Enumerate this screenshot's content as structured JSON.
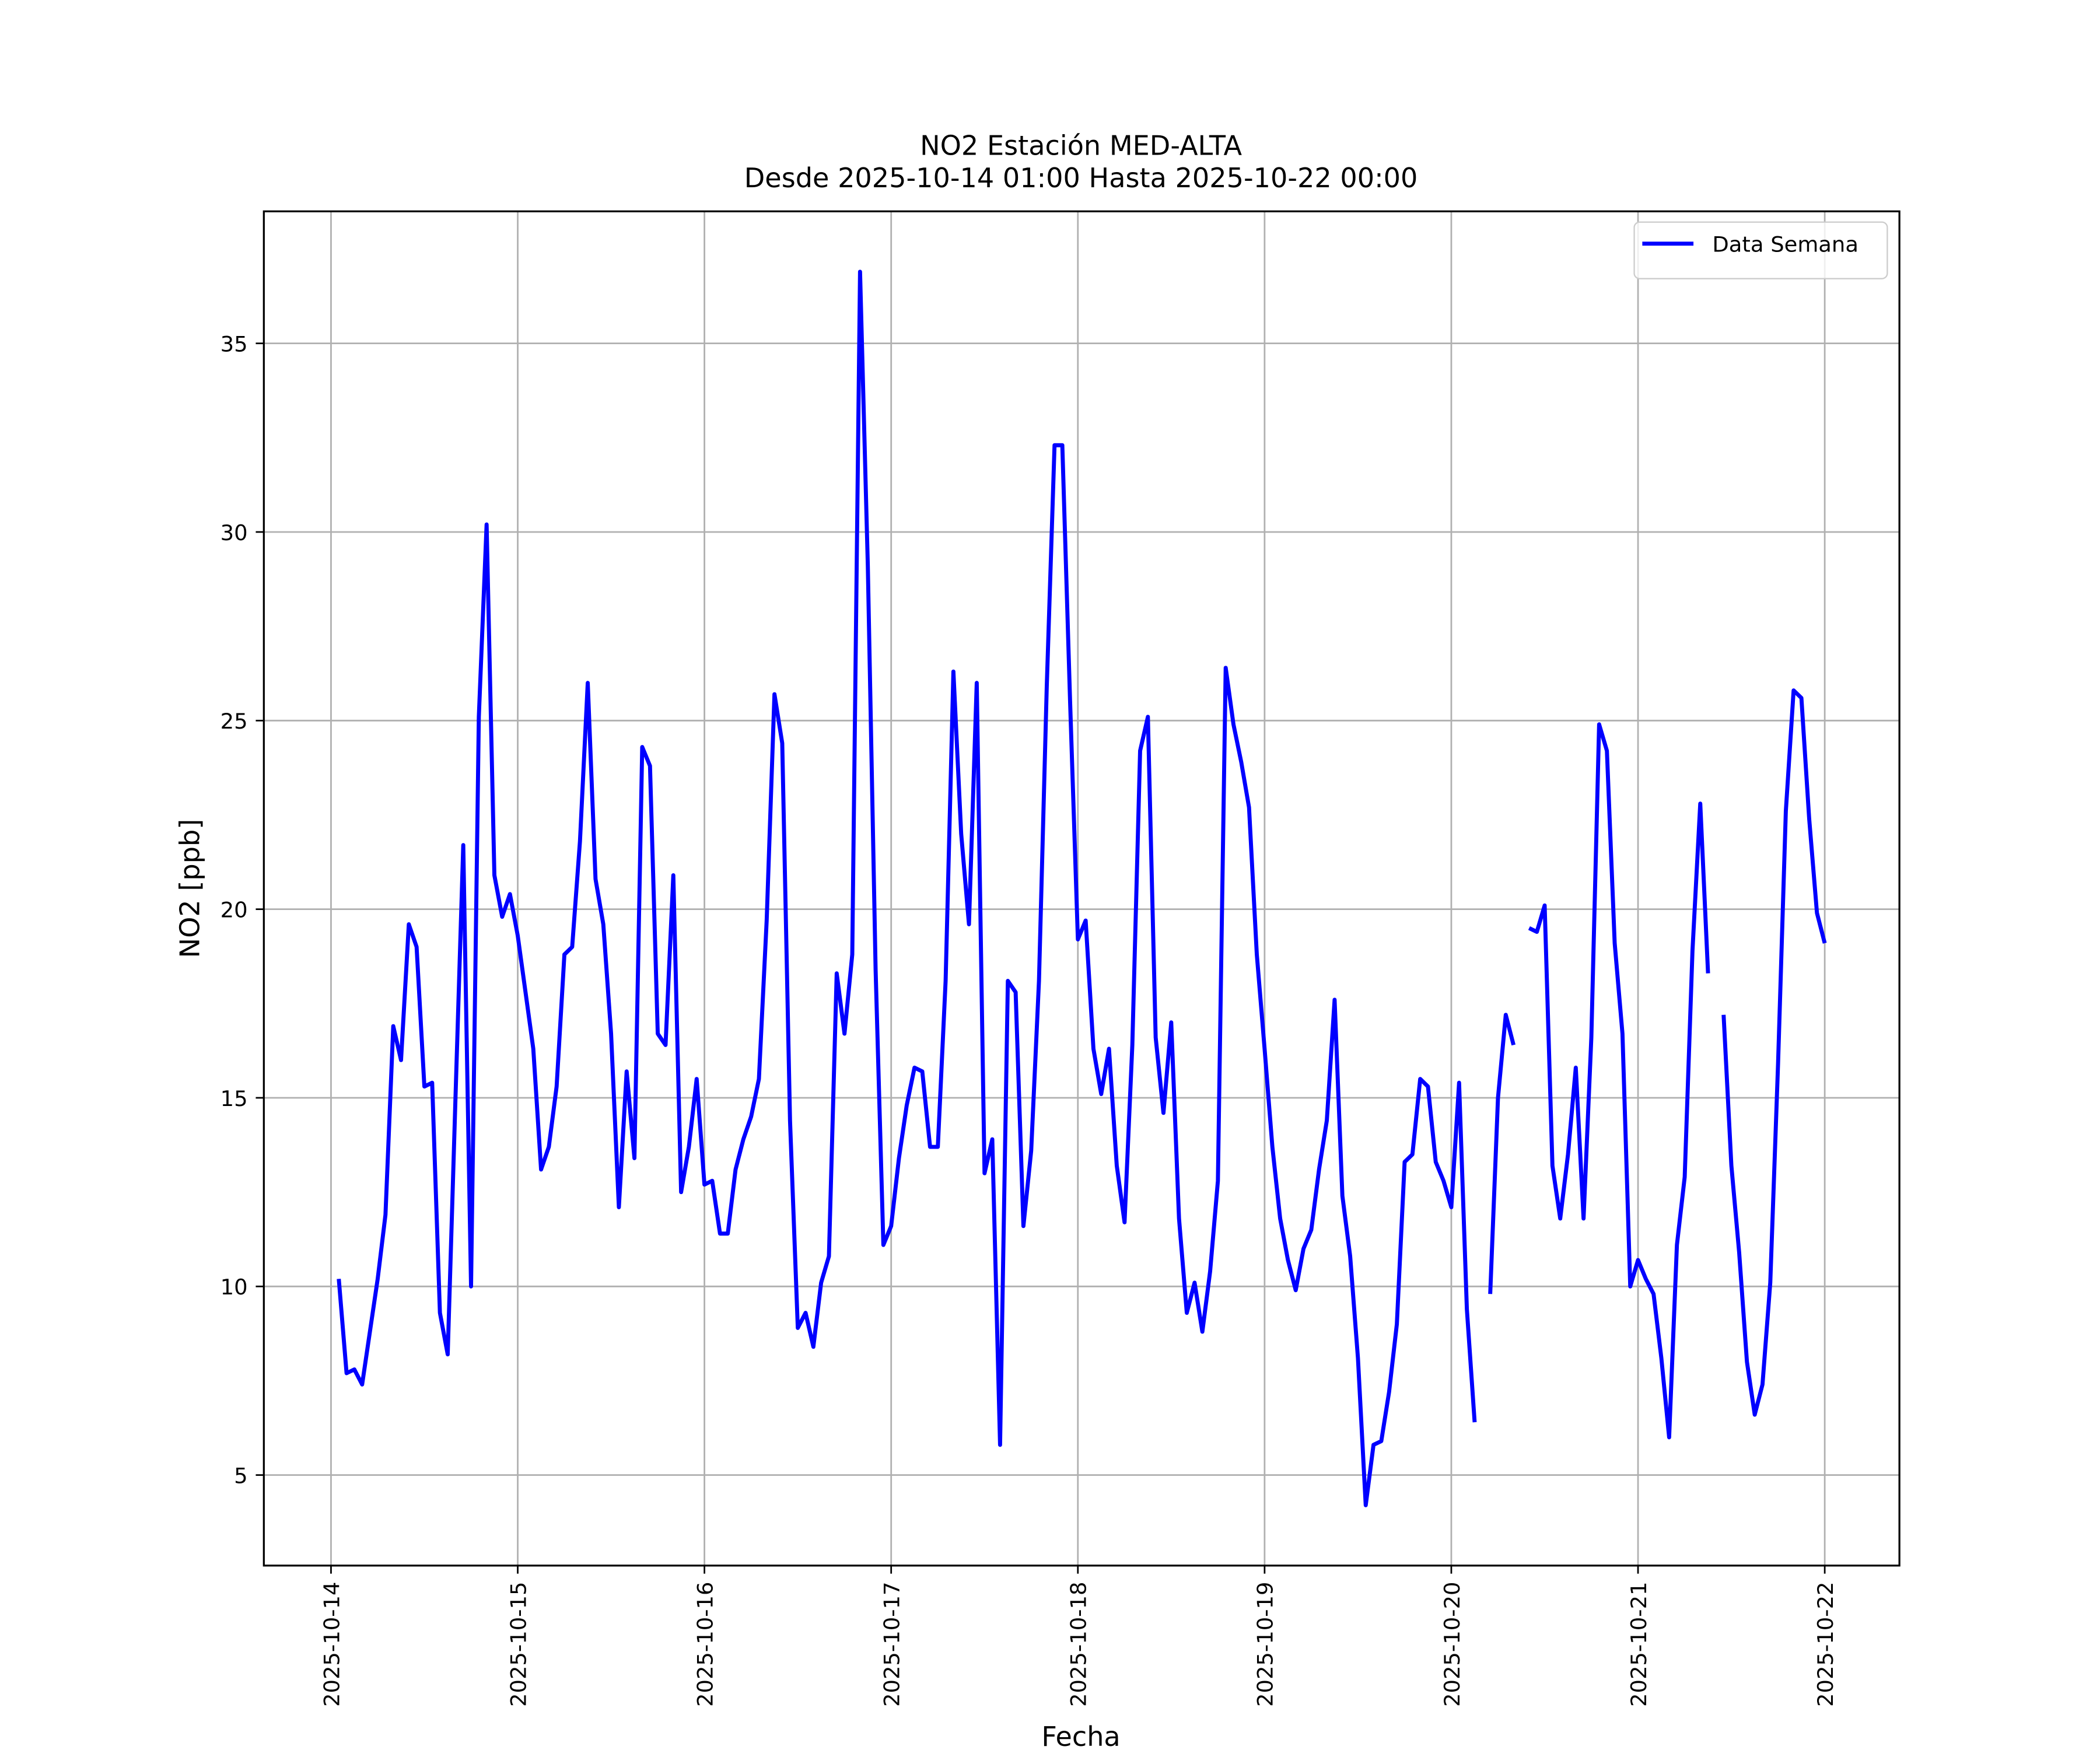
{
  "chart_data": {
    "type": "line",
    "title": "NO2 Estación MED-ALTA",
    "subtitle": "Desde 2025-10-14 01:00 Hasta 2025-10-22 00:00",
    "x_label": "Fecha",
    "y_label": "NO2 [ppb]",
    "xlim": [
      "2025-10-13 15:22",
      "2025-10-22 09:36"
    ],
    "ylim": [
      2.6,
      38.5
    ],
    "xticks": [
      "2025-10-14",
      "2025-10-15",
      "2025-10-16",
      "2025-10-17",
      "2025-10-18",
      "2025-10-19",
      "2025-10-20",
      "2025-10-21",
      "2025-10-22"
    ],
    "yticks": [
      5,
      10,
      15,
      20,
      25,
      30,
      35
    ],
    "grid": true,
    "legend": "upper right",
    "x": [
      "2025-10-14 01:00",
      "2025-10-14 02:00",
      "2025-10-14 03:00",
      "2025-10-14 04:00",
      "2025-10-14 05:00",
      "2025-10-14 06:00",
      "2025-10-14 07:00",
      "2025-10-14 08:00",
      "2025-10-14 09:00",
      "2025-10-14 10:00",
      "2025-10-14 11:00",
      "2025-10-14 12:00",
      "2025-10-14 13:00",
      "2025-10-14 14:00",
      "2025-10-14 15:00",
      "2025-10-14 16:00",
      "2025-10-14 17:00",
      "2025-10-14 18:00",
      "2025-10-14 19:00",
      "2025-10-14 20:00",
      "2025-10-14 21:00",
      "2025-10-14 22:00",
      "2025-10-14 23:00",
      "2025-10-15 00:00",
      "2025-10-15 01:00",
      "2025-10-15 02:00",
      "2025-10-15 03:00",
      "2025-10-15 04:00",
      "2025-10-15 05:00",
      "2025-10-15 06:00",
      "2025-10-15 07:00",
      "2025-10-15 08:00",
      "2025-10-15 09:00",
      "2025-10-15 10:00",
      "2025-10-15 11:00",
      "2025-10-15 12:00",
      "2025-10-15 13:00",
      "2025-10-15 14:00",
      "2025-10-15 15:00",
      "2025-10-15 16:00",
      "2025-10-15 17:00",
      "2025-10-15 18:00",
      "2025-10-15 19:00",
      "2025-10-15 20:00",
      "2025-10-15 21:00",
      "2025-10-15 22:00",
      "2025-10-15 23:00",
      "2025-10-16 00:00",
      "2025-10-16 01:00",
      "2025-10-16 02:00",
      "2025-10-16 03:00",
      "2025-10-16 04:00",
      "2025-10-16 05:00",
      "2025-10-16 06:00",
      "2025-10-16 07:00",
      "2025-10-16 08:00",
      "2025-10-16 09:00",
      "2025-10-16 10:00",
      "2025-10-16 11:00",
      "2025-10-16 12:00",
      "2025-10-16 13:00",
      "2025-10-16 14:00",
      "2025-10-16 15:00",
      "2025-10-16 16:00",
      "2025-10-16 17:00",
      "2025-10-16 18:00",
      "2025-10-16 19:00",
      "2025-10-16 20:00",
      "2025-10-16 21:00",
      "2025-10-16 22:00",
      "2025-10-16 23:00",
      "2025-10-17 00:00",
      "2025-10-17 01:00",
      "2025-10-17 02:00",
      "2025-10-17 03:00",
      "2025-10-17 04:00",
      "2025-10-17 05:00",
      "2025-10-17 06:00",
      "2025-10-17 07:00",
      "2025-10-17 08:00",
      "2025-10-17 09:00",
      "2025-10-17 10:00",
      "2025-10-17 11:00",
      "2025-10-17 12:00",
      "2025-10-17 13:00",
      "2025-10-17 14:00",
      "2025-10-17 15:00",
      "2025-10-17 16:00",
      "2025-10-17 17:00",
      "2025-10-17 18:00",
      "2025-10-17 19:00",
      "2025-10-17 20:00",
      "2025-10-17 21:00",
      "2025-10-17 22:00",
      "2025-10-17 23:00",
      "2025-10-18 00:00",
      "2025-10-18 01:00",
      "2025-10-18 02:00",
      "2025-10-18 03:00",
      "2025-10-18 04:00",
      "2025-10-18 05:00",
      "2025-10-18 06:00",
      "2025-10-18 07:00",
      "2025-10-18 08:00",
      "2025-10-18 09:00",
      "2025-10-18 10:00",
      "2025-10-18 11:00",
      "2025-10-18 12:00",
      "2025-10-18 13:00",
      "2025-10-18 14:00",
      "2025-10-18 15:00",
      "2025-10-18 16:00",
      "2025-10-18 17:00",
      "2025-10-18 18:00",
      "2025-10-18 19:00",
      "2025-10-18 20:00",
      "2025-10-18 21:00",
      "2025-10-18 22:00",
      "2025-10-18 23:00",
      "2025-10-19 00:00",
      "2025-10-19 01:00",
      "2025-10-19 02:00",
      "2025-10-19 03:00",
      "2025-10-19 04:00",
      "2025-10-19 05:00",
      "2025-10-19 06:00",
      "2025-10-19 07:00",
      "2025-10-19 08:00",
      "2025-10-19 09:00",
      "2025-10-19 10:00",
      "2025-10-19 11:00",
      "2025-10-19 12:00",
      "2025-10-19 13:00",
      "2025-10-19 14:00",
      "2025-10-19 15:00",
      "2025-10-19 16:00",
      "2025-10-19 17:00",
      "2025-10-19 18:00",
      "2025-10-19 19:00",
      "2025-10-19 20:00",
      "2025-10-19 21:00",
      "2025-10-19 22:00",
      "2025-10-19 23:00",
      "2025-10-20 00:00",
      "2025-10-20 01:00",
      "2025-10-20 02:00",
      "2025-10-20 03:00",
      "2025-10-20 04:00",
      "2025-10-20 05:00",
      "2025-10-20 06:00",
      "2025-10-20 07:00",
      "2025-10-20 08:00",
      "2025-10-20 09:00",
      "2025-10-20 10:00",
      "2025-10-20 11:00",
      "2025-10-20 12:00",
      "2025-10-20 13:00",
      "2025-10-20 14:00",
      "2025-10-20 15:00",
      "2025-10-20 16:00",
      "2025-10-20 17:00",
      "2025-10-20 18:00",
      "2025-10-20 19:00",
      "2025-10-20 20:00",
      "2025-10-20 21:00",
      "2025-10-20 22:00",
      "2025-10-20 23:00",
      "2025-10-21 00:00",
      "2025-10-21 01:00",
      "2025-10-21 02:00",
      "2025-10-21 03:00",
      "2025-10-21 04:00",
      "2025-10-21 05:00",
      "2025-10-21 06:00",
      "2025-10-21 07:00",
      "2025-10-21 08:00",
      "2025-10-21 09:00",
      "2025-10-21 10:00",
      "2025-10-21 11:00",
      "2025-10-21 12:00",
      "2025-10-21 13:00",
      "2025-10-21 14:00",
      "2025-10-21 15:00",
      "2025-10-21 16:00",
      "2025-10-21 17:00",
      "2025-10-21 18:00",
      "2025-10-21 19:00",
      "2025-10-21 20:00",
      "2025-10-21 21:00",
      "2025-10-21 22:00",
      "2025-10-21 23:00",
      "2025-10-22 00:00"
    ],
    "series": [
      {
        "name": "Data Semana",
        "color": "#0000ff",
        "values": [
          10.2,
          7.7,
          7.8,
          7.4,
          8.8,
          10.2,
          11.9,
          16.9,
          16.0,
          19.6,
          19.0,
          15.3,
          15.4,
          9.3,
          8.2,
          15.0,
          21.7,
          10.0,
          25.1,
          30.2,
          20.9,
          19.8,
          20.4,
          19.3,
          17.8,
          16.3,
          13.1,
          13.7,
          15.3,
          18.8,
          19.0,
          21.8,
          26.0,
          20.8,
          19.6,
          16.7,
          12.1,
          15.7,
          13.4,
          24.3,
          23.8,
          16.7,
          16.4,
          20.9,
          12.5,
          13.7,
          15.5,
          12.7,
          12.8,
          11.4,
          11.4,
          13.1,
          13.9,
          14.5,
          15.5,
          19.7,
          25.7,
          24.4,
          14.4,
          8.9,
          9.3,
          8.4,
          10.1,
          10.8,
          18.3,
          16.7,
          18.8,
          36.9,
          29.1,
          18.4,
          11.1,
          11.6,
          13.4,
          14.8,
          15.8,
          15.7,
          13.7,
          13.7,
          18.1,
          26.3,
          22.0,
          19.6,
          26.0,
          13.0,
          13.9,
          5.8,
          18.1,
          17.8,
          11.6,
          13.6,
          18.1,
          25.9,
          32.3,
          32.3,
          25.5,
          19.2,
          19.7,
          16.3,
          15.1,
          16.3,
          13.2,
          11.7,
          16.4,
          24.2,
          25.1,
          16.6,
          14.6,
          17.0,
          11.8,
          9.3,
          10.1,
          8.8,
          10.4,
          12.8,
          26.4,
          24.9,
          23.9,
          22.7,
          18.8,
          16.3,
          13.7,
          11.8,
          10.7,
          9.9,
          11.0,
          11.5,
          13.1,
          14.4,
          17.6,
          12.4,
          10.8,
          8.1,
          4.2,
          5.8,
          5.9,
          7.2,
          9.0,
          13.3,
          13.5,
          15.5,
          15.3,
          13.3,
          12.8,
          12.1,
          15.4,
          9.4,
          6.4,
          null,
          9.8,
          15.0,
          17.2,
          16.4,
          null,
          19.5,
          19.4,
          20.1,
          13.2,
          11.8,
          13.5,
          15.8,
          11.8,
          16.6,
          24.9,
          24.2,
          19.1,
          16.7,
          10.0,
          10.7,
          10.2,
          9.8,
          8.1,
          6.0,
          11.1,
          12.9,
          18.9,
          22.8,
          18.3,
          null,
          17.2,
          13.2,
          10.9,
          8.0,
          6.6,
          7.4,
          10.1,
          15.9,
          22.6,
          25.8,
          25.6,
          22.4,
          19.9,
          19.1
        ]
      }
    ]
  }
}
